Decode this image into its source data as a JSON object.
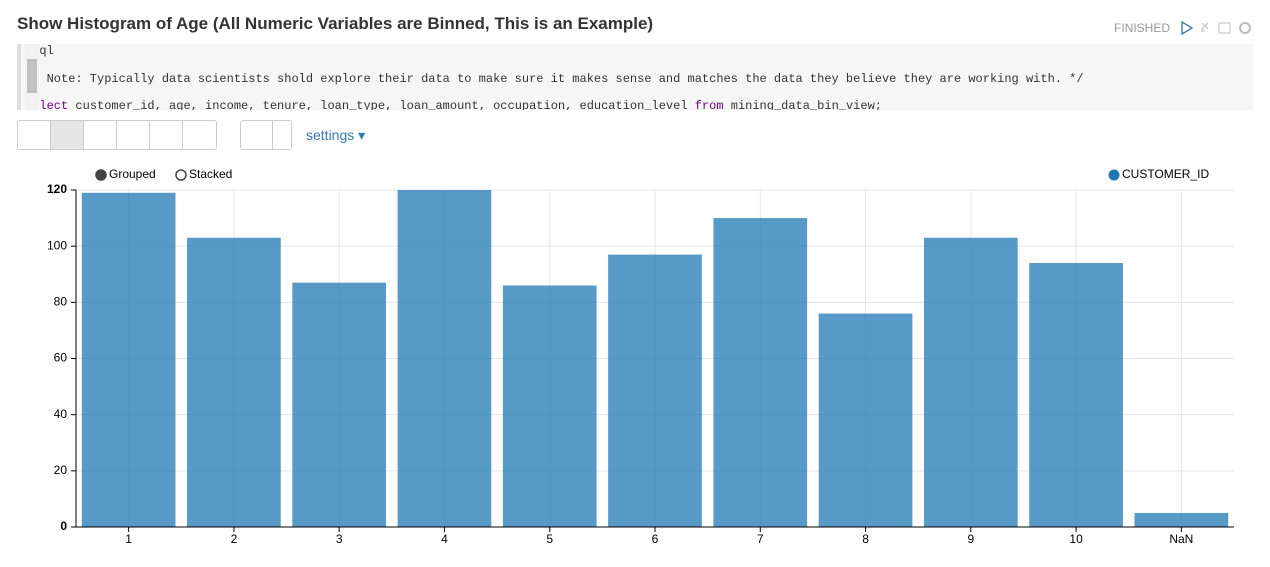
{
  "header": {
    "title": "Show Histogram of Age (All Numeric Variables are Binned, This is an Example)",
    "status": "FINISHED"
  },
  "code": {
    "interpreter": "%sql",
    "comment": "/* Note: Typically data scientists shold explore their data to make sure it makes sense and matches the data they believe they are working with. */",
    "query": {
      "select_keyword": "select",
      "columns": "customer_id, age, income, tenure, loan_type, loan_amount, occupation, education_level",
      "from_keyword": "from",
      "table": "mining_data_bin_view;"
    }
  },
  "toolbar": {
    "settings": "settings"
  },
  "chart_data": {
    "type": "bar",
    "modes": [
      "Grouped",
      "Stacked"
    ],
    "stacked": false,
    "categories": [
      "1",
      "2",
      "3",
      "4",
      "5",
      "6",
      "7",
      "8",
      "9",
      "10",
      "NaN"
    ],
    "series": [
      {
        "name": "CUSTOMER_ID",
        "color": "#1f77b4",
        "values": [
          119,
          103,
          87,
          120,
          86,
          97,
          110,
          76,
          103,
          94,
          5
        ]
      }
    ],
    "ylim": [
      0,
      120
    ],
    "yticks": [
      0,
      20,
      40,
      60,
      80,
      100,
      120
    ],
    "grid": true,
    "legend": "top-right"
  }
}
